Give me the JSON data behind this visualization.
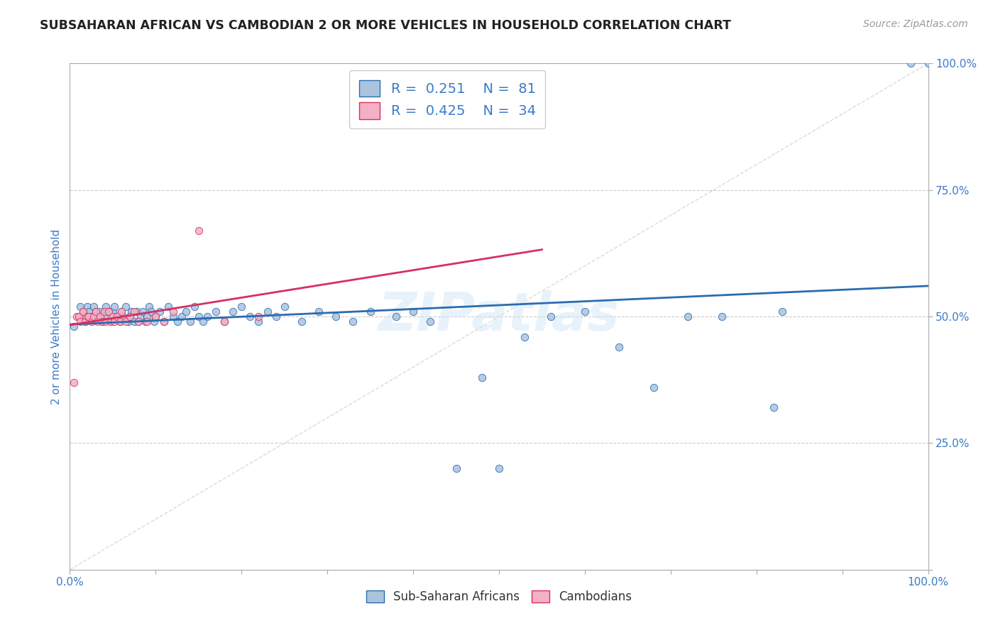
{
  "title": "SUBSAHARAN AFRICAN VS CAMBODIAN 2 OR MORE VEHICLES IN HOUSEHOLD CORRELATION CHART",
  "source": "Source: ZipAtlas.com",
  "ylabel": "2 or more Vehicles in Household",
  "watermark": "ZIPatlas",
  "r_blue": 0.251,
  "n_blue": 81,
  "r_pink": 0.425,
  "n_pink": 34,
  "blue_color": "#aac4e0",
  "pink_color": "#f4b0c4",
  "blue_line_color": "#2b6cb0",
  "pink_line_color": "#d63060",
  "title_color": "#222222",
  "source_color": "#999999",
  "axis_label_color": "#3a7bc8",
  "tick_label_color": "#3a7bc8",
  "grid_color": "#cccccc",
  "background_color": "#ffffff",
  "legend_border_color": "#cccccc",
  "diag_color": "#cccccc",
  "figsize": [
    14.06,
    8.92
  ],
  "dpi": 100,
  "blue_x": [
    0.005,
    0.01,
    0.012,
    0.015,
    0.018,
    0.02,
    0.022,
    0.025,
    0.028,
    0.03,
    0.032,
    0.035,
    0.038,
    0.04,
    0.042,
    0.045,
    0.048,
    0.05,
    0.052,
    0.055,
    0.058,
    0.06,
    0.062,
    0.065,
    0.068,
    0.07,
    0.072,
    0.075,
    0.078,
    0.08,
    0.082,
    0.085,
    0.088,
    0.09,
    0.092,
    0.095,
    0.098,
    0.1,
    0.105,
    0.11,
    0.115,
    0.12,
    0.125,
    0.13,
    0.135,
    0.14,
    0.145,
    0.15,
    0.155,
    0.16,
    0.17,
    0.18,
    0.19,
    0.2,
    0.21,
    0.22,
    0.23,
    0.24,
    0.25,
    0.27,
    0.29,
    0.31,
    0.33,
    0.35,
    0.38,
    0.4,
    0.42,
    0.45,
    0.48,
    0.5,
    0.53,
    0.56,
    0.6,
    0.64,
    0.68,
    0.72,
    0.76,
    0.82,
    0.98,
    1.0,
    0.83
  ],
  "blue_y": [
    0.48,
    0.5,
    0.52,
    0.51,
    0.49,
    0.52,
    0.51,
    0.5,
    0.52,
    0.51,
    0.5,
    0.51,
    0.49,
    0.5,
    0.52,
    0.51,
    0.49,
    0.51,
    0.52,
    0.5,
    0.49,
    0.51,
    0.5,
    0.52,
    0.49,
    0.5,
    0.51,
    0.49,
    0.51,
    0.49,
    0.5,
    0.51,
    0.49,
    0.5,
    0.52,
    0.51,
    0.49,
    0.5,
    0.51,
    0.49,
    0.52,
    0.5,
    0.49,
    0.5,
    0.51,
    0.49,
    0.52,
    0.5,
    0.49,
    0.5,
    0.51,
    0.49,
    0.51,
    0.52,
    0.5,
    0.49,
    0.51,
    0.5,
    0.52,
    0.49,
    0.51,
    0.5,
    0.49,
    0.51,
    0.5,
    0.51,
    0.49,
    0.2,
    0.38,
    0.2,
    0.46,
    0.5,
    0.51,
    0.44,
    0.36,
    0.5,
    0.5,
    0.32,
    1.0,
    1.0,
    0.51
  ],
  "pink_x": [
    0.005,
    0.008,
    0.01,
    0.012,
    0.015,
    0.018,
    0.02,
    0.022,
    0.025,
    0.028,
    0.03,
    0.032,
    0.035,
    0.038,
    0.04,
    0.042,
    0.045,
    0.048,
    0.05,
    0.052,
    0.055,
    0.058,
    0.06,
    0.065,
    0.07,
    0.075,
    0.08,
    0.09,
    0.1,
    0.11,
    0.12,
    0.15,
    0.18,
    0.22
  ],
  "pink_y": [
    0.37,
    0.5,
    0.5,
    0.49,
    0.51,
    0.49,
    0.5,
    0.5,
    0.49,
    0.5,
    0.51,
    0.49,
    0.5,
    0.49,
    0.51,
    0.49,
    0.51,
    0.49,
    0.5,
    0.49,
    0.5,
    0.49,
    0.51,
    0.49,
    0.5,
    0.51,
    0.49,
    0.49,
    0.5,
    0.49,
    0.51,
    0.67,
    0.49,
    0.5
  ]
}
